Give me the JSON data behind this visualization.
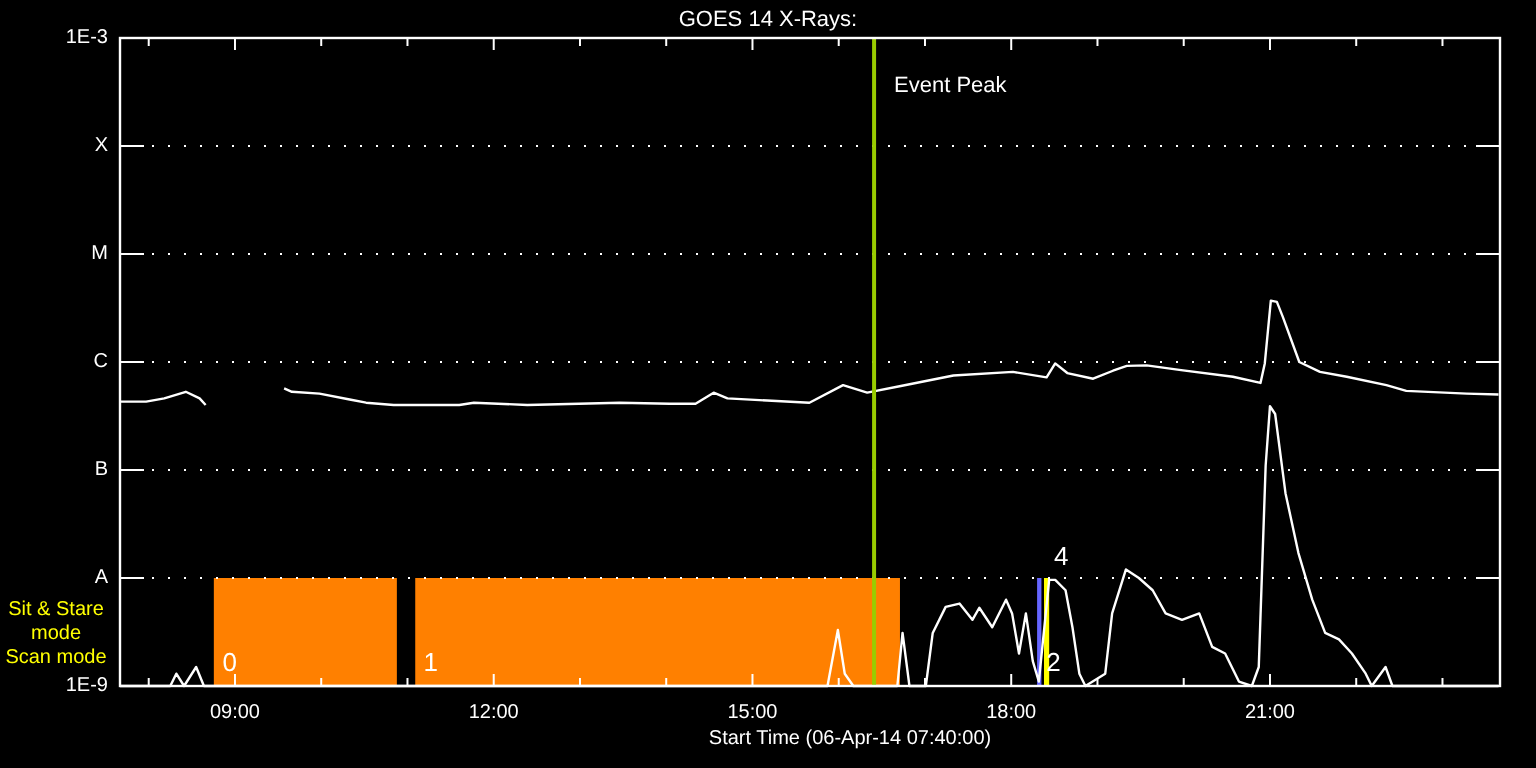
{
  "chart_data": {
    "type": "line",
    "title": "GOES 14 X-Rays:",
    "xlabel": "Start Time (06-Apr-14 07:40:00)",
    "xlim": [
      7.667,
      23.667
    ],
    "xticks": [
      {
        "value": 8,
        "label": null
      },
      {
        "value": 9,
        "label": "09:00"
      },
      {
        "value": 10,
        "label": null
      },
      {
        "value": 11,
        "label": null
      },
      {
        "value": 12,
        "label": "12:00"
      },
      {
        "value": 13,
        "label": null
      },
      {
        "value": 14,
        "label": null
      },
      {
        "value": 15,
        "label": "15:00"
      },
      {
        "value": 16,
        "label": null
      },
      {
        "value": 17,
        "label": null
      },
      {
        "value": 18,
        "label": "18:00"
      },
      {
        "value": 19,
        "label": null
      },
      {
        "value": 20,
        "label": null
      },
      {
        "value": 21,
        "label": "21:00"
      },
      {
        "value": 22,
        "label": null
      },
      {
        "value": 23,
        "label": null
      }
    ],
    "ylim": [
      1e-09,
      0.001
    ],
    "log": "y",
    "yticks": [
      {
        "value": 1e-09,
        "label": "1E-9"
      },
      {
        "value": 1e-08,
        "label": "A"
      },
      {
        "value": 1e-07,
        "label": "B"
      },
      {
        "value": 1e-06,
        "label": "C"
      },
      {
        "value": 1e-05,
        "label": "M"
      },
      {
        "value": 0.0001,
        "label": "X"
      },
      {
        "value": 0.001,
        "label": "1E-3"
      }
    ],
    "grid": "y",
    "line_style": "solid",
    "marker": "none",
    "series": [
      {
        "color": "#ffffff",
        "x": [
          7.667,
          7.97,
          8.18,
          8.43,
          8.59,
          8.66,
          9.2,
          9.57,
          9.66,
          9.98,
          10.33,
          10.52,
          10.84,
          11.6,
          11.77,
          12.39,
          13.46,
          14.04,
          14.34,
          14.55,
          14.71,
          15.17,
          15.66,
          16.05,
          16.33,
          16.72,
          17.33,
          18.02,
          18.41,
          18.51,
          18.65,
          18.95,
          19.18,
          19.34,
          19.57,
          19.97,
          20.57,
          20.89,
          20.94,
          21.01,
          21.08,
          21.15,
          21.34,
          21.58,
          21.89,
          22.35,
          22.58,
          23.28,
          23.65
        ],
        "values": [
          4.3e-07,
          4.3e-07,
          4.6e-07,
          5.3e-07,
          4.6e-07,
          4e-07,
          null,
          5.7e-07,
          5.3e-07,
          5.1e-07,
          4.5e-07,
          4.2e-07,
          4e-07,
          4e-07,
          4.2e-07,
          4e-07,
          4.2e-07,
          4.1e-07,
          4.1e-07,
          5.2e-07,
          4.6e-07,
          4.4e-07,
          4.2e-07,
          6.1e-07,
          5.2e-07,
          6e-07,
          7.5e-07,
          8.1e-07,
          7.2e-07,
          9.7e-07,
          7.9e-07,
          7e-07,
          8.3e-07,
          9.2e-07,
          9.3e-07,
          8.4e-07,
          7.3e-07,
          6.4e-07,
          9.7e-07,
          3.7e-06,
          3.6e-06,
          2.6e-06,
          1e-06,
          8.1e-07,
          7.3e-07,
          6.1e-07,
          5.4e-07,
          5.1e-07,
          5e-07
        ]
      },
      {
        "color": "#ffffff",
        "x": [
          7.667,
          8.25,
          8.32,
          8.41,
          8.55,
          8.64,
          15.54,
          15.87,
          15.99,
          16.07,
          16.17,
          16.68,
          16.74,
          16.82,
          17.01,
          17.09,
          17.24,
          17.4,
          17.55,
          17.63,
          17.78,
          17.94,
          18.01,
          18.09,
          18.17,
          18.25,
          18.32,
          18.44,
          18.51,
          18.63,
          18.71,
          18.79,
          18.86,
          19.09,
          19.17,
          19.33,
          19.48,
          19.64,
          19.79,
          19.98,
          20.18,
          20.33,
          20.48,
          20.64,
          20.79,
          20.87,
          20.95,
          21.0,
          21.06,
          21.18,
          21.33,
          21.49,
          21.64,
          21.8,
          21.95,
          22.11,
          22.18,
          22.34,
          22.42,
          23.65
        ],
        "values": [
          1e-09,
          1e-09,
          1.3e-09,
          1e-09,
          1.5e-09,
          1e-09,
          1e-09,
          1e-09,
          3.3e-09,
          1.3e-09,
          1e-09,
          1e-09,
          3.1e-09,
          1e-09,
          1e-09,
          3.1e-09,
          5.4e-09,
          5.8e-09,
          4.1e-09,
          5.3e-09,
          3.5e-09,
          6.3e-09,
          4.7e-09,
          2e-09,
          4.7e-09,
          1.7e-09,
          1.1e-09,
          9.6e-09,
          9.6e-09,
          7.7e-09,
          3.5e-09,
          1.3e-09,
          1e-09,
          1.3e-09,
          4.7e-09,
          1.2e-08,
          1e-08,
          7.7e-09,
          4.7e-09,
          4.1e-09,
          4.7e-09,
          2.3e-09,
          2e-09,
          1.1e-09,
          1e-09,
          1.5e-09,
          1.1e-07,
          3.9e-07,
          3.3e-07,
          6.1e-08,
          1.7e-08,
          6.3e-09,
          3.1e-09,
          2.7e-09,
          2e-09,
          1.3e-09,
          1e-09,
          1.5e-09,
          1e-09,
          1e-09
        ]
      }
    ],
    "bands": [
      {
        "axis": "x",
        "from": 8.755,
        "to": 10.877,
        "color": "#ff8000"
      },
      {
        "axis": "x",
        "from": 11.09,
        "to": 16.71,
        "color": "#ff8000"
      },
      {
        "axis": "x",
        "from": 18.3,
        "to": 18.35,
        "color": "#6666ff"
      },
      {
        "axis": "x",
        "from": 18.38,
        "to": 18.44,
        "color": "#ffff00"
      }
    ],
    "ref_lines": [
      {
        "axis": "x",
        "value": 16.41,
        "label": "Event Peak",
        "color": "#99cc00"
      }
    ],
    "annotations": [
      "Sit & Stare\nmode",
      "Scan mode",
      {
        "text": "0",
        "x": 8.87,
        "y": 1e-09
      },
      {
        "text": "1",
        "x": 11.2,
        "y": 1e-09
      },
      {
        "text": "2",
        "x": 18.42,
        "y": 1e-09
      },
      {
        "text": "4",
        "x": 18.51,
        "y": 9.6e-09
      }
    ]
  }
}
